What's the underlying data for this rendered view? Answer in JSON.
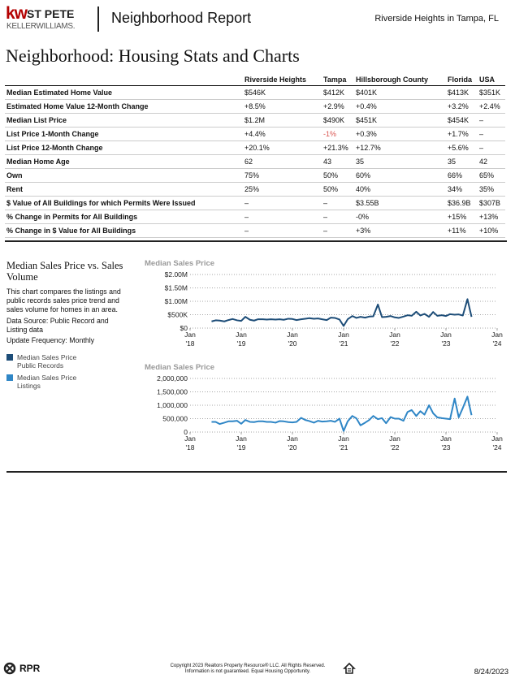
{
  "header": {
    "logo_kw": "kw",
    "logo_office": "ST PETE",
    "logo_brand": "KELLERWILLIAMS.",
    "title": "Neighborhood Report",
    "location": "Riverside Heights in Tampa, FL"
  },
  "heading": "Neighborhood: Housing Stats and Charts",
  "table": {
    "columns": [
      "Riverside Heights",
      "Tampa",
      "Hillsborough County",
      "Florida",
      "USA"
    ],
    "rows": [
      [
        "Median Estimated Home Value",
        "$546K",
        "$412K",
        "$401K",
        "$413K",
        "$351K"
      ],
      [
        "Estimated Home Value 12-Month Change",
        "+8.5%",
        "+2.9%",
        "+0.4%",
        "+3.2%",
        "+2.4%"
      ],
      [
        "Median List Price",
        "$1.2M",
        "$490K",
        "$451K",
        "$454K",
        "–"
      ],
      [
        "List Price 1-Month Change",
        "+4.4%",
        "-1%",
        "+0.3%",
        "+1.7%",
        "–"
      ],
      [
        "List Price 12-Month Change",
        "+20.1%",
        "+21.3%",
        "+12.7%",
        "+5.6%",
        "–"
      ],
      [
        "Median Home Age",
        "62",
        "43",
        "35",
        "35",
        "42"
      ],
      [
        "Own",
        "75%",
        "50%",
        "60%",
        "66%",
        "65%"
      ],
      [
        "Rent",
        "25%",
        "50%",
        "40%",
        "34%",
        "35%"
      ],
      [
        "$ Value of All Buildings for which Permits Were Issued",
        "–",
        "–",
        "$3.55B",
        "$36.9B",
        "$307B"
      ],
      [
        "% Change in Permits for All Buildings",
        "–",
        "–",
        "-0%",
        "+15%",
        "+13%"
      ],
      [
        "% Change in $ Value for All Buildings",
        "–",
        "–",
        "+3%",
        "+11%",
        "+10%"
      ]
    ]
  },
  "side_panel": {
    "title": "Median Sales Price vs. Sales Volume",
    "description": "This chart compares the listings and public records sales price trend and sales volume for homes in an area.",
    "source": "Data Source: Public Record and Listing data",
    "frequency": "Update Frequency: Monthly"
  },
  "chart_data": [
    {
      "type": "line",
      "title": "Median Sales Price",
      "xlim": [
        2018,
        2024
      ],
      "xticks": [
        {
          "value": 2018,
          "label": [
            "Jan",
            "'18"
          ]
        },
        {
          "value": 2019,
          "label": [
            "Jan",
            "'19"
          ]
        },
        {
          "value": 2020,
          "label": [
            "Jan",
            "'20"
          ]
        },
        {
          "value": 2021,
          "label": [
            "Jan",
            "'21"
          ]
        },
        {
          "value": 2022,
          "label": [
            "Jan",
            "'22"
          ]
        },
        {
          "value": 2023,
          "label": [
            "Jan",
            "'23"
          ]
        },
        {
          "value": 2024,
          "label": [
            "Jan",
            "'24"
          ]
        }
      ],
      "ylim": [
        0,
        2000000
      ],
      "yticks": [
        {
          "value": 0,
          "label": "$0"
        },
        {
          "value": 500000,
          "label": "$500K"
        },
        {
          "value": 1000000,
          "label": "$1.00M"
        },
        {
          "value": 1500000,
          "label": "$1.50M"
        },
        {
          "value": 2000000,
          "label": "$2.00M"
        }
      ],
      "grid": true,
      "x": [
        2018.42,
        2018.5,
        2018.58,
        2018.67,
        2018.75,
        2018.83,
        2018.92,
        2019.0,
        2019.08,
        2019.17,
        2019.25,
        2019.33,
        2019.42,
        2019.5,
        2019.58,
        2019.67,
        2019.75,
        2019.83,
        2019.92,
        2020.0,
        2020.08,
        2020.17,
        2020.25,
        2020.33,
        2020.42,
        2020.5,
        2020.58,
        2020.67,
        2020.75,
        2020.83,
        2020.92,
        2021.0,
        2021.08,
        2021.17,
        2021.25,
        2021.33,
        2021.42,
        2021.5,
        2021.58,
        2021.67,
        2021.75,
        2021.83,
        2021.92,
        2022.0,
        2022.08,
        2022.17,
        2022.25,
        2022.33,
        2022.42,
        2022.5,
        2022.58,
        2022.67,
        2022.75,
        2022.83,
        2022.92,
        2023.0,
        2023.08,
        2023.17,
        2023.25,
        2023.33,
        2023.42,
        2023.5
      ],
      "series": [
        {
          "name": "Median Sales Price Public Records",
          "color": "#1d4d78",
          "values": [
            250000,
            290000,
            280000,
            250000,
            300000,
            340000,
            290000,
            270000,
            420000,
            310000,
            280000,
            330000,
            330000,
            320000,
            330000,
            320000,
            330000,
            310000,
            350000,
            340000,
            300000,
            330000,
            350000,
            370000,
            350000,
            360000,
            330000,
            300000,
            390000,
            380000,
            320000,
            80000,
            330000,
            450000,
            380000,
            420000,
            390000,
            430000,
            440000,
            880000,
            410000,
            420000,
            450000,
            400000,
            380000,
            430000,
            480000,
            460000,
            610000,
            470000,
            530000,
            420000,
            600000,
            460000,
            480000,
            450000,
            520000,
            500000,
            510000,
            470000,
            1080000,
            420000
          ]
        }
      ]
    },
    {
      "type": "line",
      "title": "Median Sales Price",
      "xlim": [
        2018,
        2024
      ],
      "xticks": [
        {
          "value": 2018,
          "label": [
            "Jan",
            "'18"
          ]
        },
        {
          "value": 2019,
          "label": [
            "Jan",
            "'19"
          ]
        },
        {
          "value": 2020,
          "label": [
            "Jan",
            "'20"
          ]
        },
        {
          "value": 2021,
          "label": [
            "Jan",
            "'21"
          ]
        },
        {
          "value": 2022,
          "label": [
            "Jan",
            "'22"
          ]
        },
        {
          "value": 2023,
          "label": [
            "Jan",
            "'23"
          ]
        },
        {
          "value": 2024,
          "label": [
            "Jan",
            "'24"
          ]
        }
      ],
      "ylim": [
        0,
        2000000
      ],
      "yticks": [
        0,
        {
          "value": 500000,
          "label": "500,000"
        },
        {
          "value": 1000000,
          "label": "1,000,000"
        },
        {
          "value": 1500000,
          "label": "1,500,000"
        },
        {
          "value": 2000000,
          "label": "2,000,000"
        }
      ],
      "grid": true,
      "x": [
        2018.42,
        2018.5,
        2018.58,
        2018.67,
        2018.75,
        2018.83,
        2018.92,
        2019.0,
        2019.08,
        2019.17,
        2019.25,
        2019.33,
        2019.42,
        2019.5,
        2019.58,
        2019.67,
        2019.75,
        2019.83,
        2019.92,
        2020.0,
        2020.08,
        2020.17,
        2020.25,
        2020.33,
        2020.42,
        2020.5,
        2020.58,
        2020.67,
        2020.75,
        2020.83,
        2020.92,
        2021.0,
        2021.08,
        2021.17,
        2021.25,
        2021.33,
        2021.42,
        2021.5,
        2021.58,
        2021.67,
        2021.75,
        2021.83,
        2021.92,
        2022.0,
        2022.08,
        2022.17,
        2022.25,
        2022.33,
        2022.42,
        2022.5,
        2022.58,
        2022.67,
        2022.75,
        2022.83,
        2022.92,
        2023.0,
        2023.08,
        2023.17,
        2023.25,
        2023.33,
        2023.42,
        2023.5
      ],
      "series": [
        {
          "name": "Median Sales Price Listings",
          "color": "#2f86c6",
          "values": [
            380000,
            380000,
            300000,
            350000,
            400000,
            400000,
            420000,
            310000,
            450000,
            380000,
            370000,
            400000,
            400000,
            380000,
            380000,
            350000,
            410000,
            400000,
            370000,
            360000,
            380000,
            530000,
            450000,
            410000,
            350000,
            420000,
            390000,
            400000,
            420000,
            380000,
            500000,
            40000,
            400000,
            600000,
            510000,
            250000,
            350000,
            450000,
            600000,
            480000,
            520000,
            330000,
            560000,
            500000,
            500000,
            420000,
            750000,
            820000,
            600000,
            780000,
            650000,
            1000000,
            700000,
            550000,
            520000,
            500000,
            480000,
            1250000,
            550000,
            900000,
            1320000,
            630000
          ]
        }
      ]
    }
  ],
  "footer": {
    "brand": "RPR",
    "copyright": "Copyright 2023 Realtors Property Resource® LLC. All Rights Reserved.",
    "disclaimer": "Information is not guaranteed. Equal Housing Opportunity.",
    "date": "8/24/2023"
  }
}
